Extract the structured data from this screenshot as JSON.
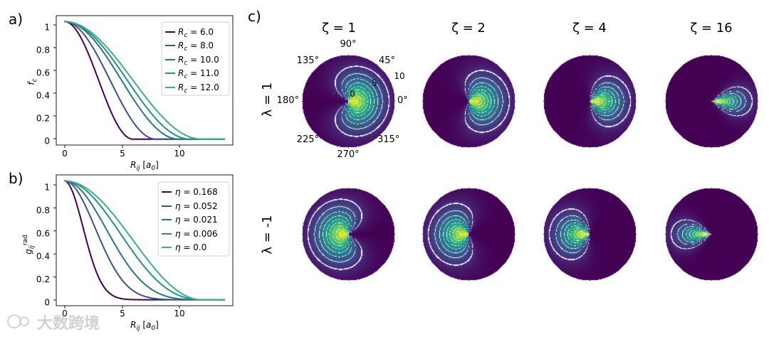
{
  "panel_labels": [
    "a)",
    "b)",
    "c)"
  ],
  "watermark": "大数跨境",
  "chart_data": [
    {
      "type": "line",
      "panel": "a)",
      "title": "",
      "xlabel": "R_ij [a_0]",
      "ylabel": "f_c",
      "xlim": [
        -0.7,
        14.7
      ],
      "ylim": [
        -0.05,
        1.05
      ],
      "xticks": [
        0,
        5,
        10
      ],
      "yticks": [
        0.0,
        0.2,
        0.4,
        0.6,
        0.8,
        1.0
      ],
      "x_max": 14,
      "grid": false,
      "legend_position": "top-right",
      "legend_prefix": "R_c =",
      "series": [
        {
          "name": "6.0",
          "rc": 6.0,
          "color": "#440154"
        },
        {
          "name": "8.0",
          "rc": 8.0,
          "color": "#3b528b"
        },
        {
          "name": "10.0",
          "rc": 10.0,
          "color": "#2c728e"
        },
        {
          "name": "11.0",
          "rc": 11.0,
          "color": "#21918c"
        },
        {
          "name": "12.0",
          "rc": 12.0,
          "color": "#35b779"
        }
      ]
    },
    {
      "type": "line",
      "panel": "b)",
      "title": "",
      "xlabel": "R_ij [a_0]",
      "ylabel": "g_ij^rad",
      "xlim": [
        -0.7,
        14.7
      ],
      "ylim": [
        -0.05,
        1.05
      ],
      "xticks": [
        0,
        5,
        10
      ],
      "yticks": [
        0.0,
        0.2,
        0.4,
        0.6,
        0.8,
        1.0
      ],
      "x_max": 14,
      "cutoff": 12.0,
      "grid": false,
      "legend_position": "top-right",
      "legend_prefix": "η =",
      "series": [
        {
          "name": "0.168",
          "eta": 0.168,
          "color": "#440154"
        },
        {
          "name": "0.052",
          "eta": 0.052,
          "color": "#3b528b"
        },
        {
          "name": "0.021",
          "eta": 0.021,
          "color": "#2c728e"
        },
        {
          "name": "0.006",
          "eta": 0.006,
          "color": "#21918c"
        },
        {
          "name": "0.0",
          "eta": 0.0,
          "color": "#35b779"
        }
      ]
    },
    {
      "type": "heatmap",
      "panel": "c)",
      "title": "",
      "projection": "polar",
      "columns": [
        {
          "label": "ζ = 1",
          "zeta": 1
        },
        {
          "label": "ζ = 2",
          "zeta": 2
        },
        {
          "label": "ζ = 4",
          "zeta": 4
        },
        {
          "label": "ζ = 16",
          "zeta": 16
        }
      ],
      "rows": [
        {
          "label": "λ = 1",
          "lambda": 1
        },
        {
          "label": "λ = -1",
          "lambda": -1
        }
      ],
      "angle_ticks": [
        "0°",
        "45°",
        "90°",
        "135°",
        "180°",
        "225°",
        "270°",
        "315°"
      ],
      "radial_ticks": [
        "0",
        "5",
        "10"
      ],
      "colormap": "viridis",
      "contour_color": "#ffffff"
    }
  ]
}
